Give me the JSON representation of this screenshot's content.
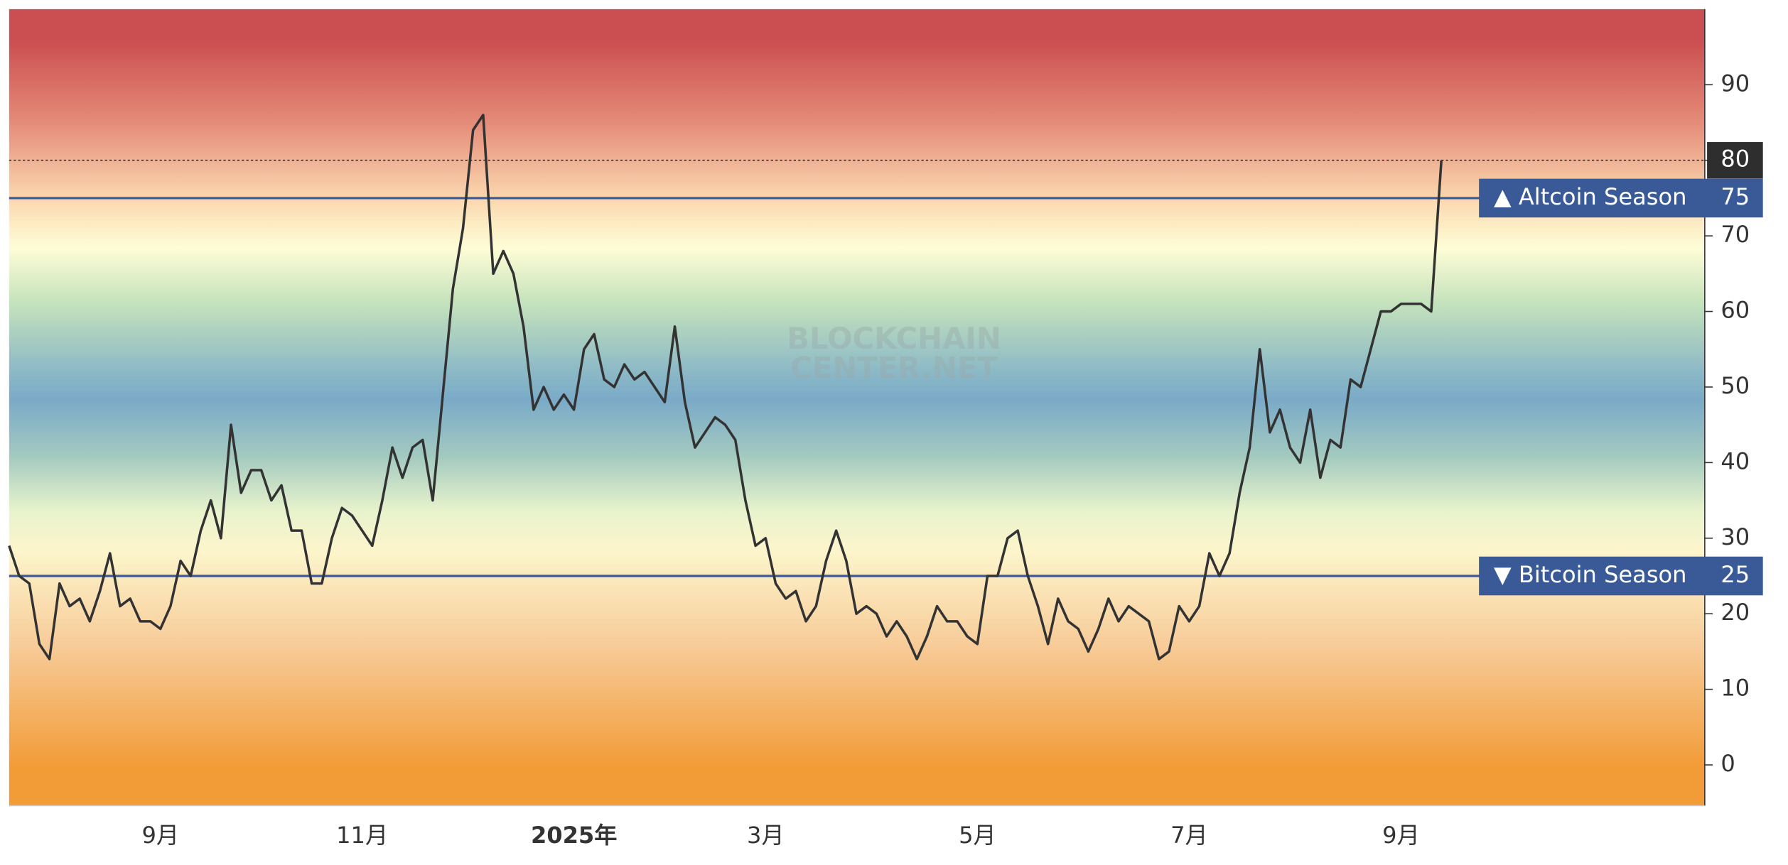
{
  "chart_data": {
    "type": "line",
    "categories": [
      null,
      null,
      null,
      null,
      null,
      null,
      null,
      null,
      null,
      null,
      null,
      null,
      null,
      null,
      null,
      "9月",
      null,
      null,
      null,
      null,
      null,
      null,
      null,
      null,
      null,
      null,
      null,
      null,
      null,
      null,
      null,
      null,
      null,
      null,
      null,
      "11月",
      null,
      null,
      null,
      null,
      null,
      null,
      null,
      null,
      null,
      null,
      null,
      null,
      null,
      null,
      null,
      null,
      null,
      null,
      null,
      null,
      "2025年",
      null,
      null,
      null,
      null,
      null,
      null,
      null,
      null,
      null,
      null,
      null,
      null,
      null,
      null,
      null,
      null,
      null,
      null,
      "3月",
      null,
      null,
      null,
      null,
      null,
      null,
      null,
      null,
      null,
      null,
      null,
      null,
      null,
      null,
      null,
      null,
      null,
      null,
      null,
      null,
      "5月",
      null,
      null,
      null,
      null,
      null,
      null,
      null,
      null,
      null,
      null,
      null,
      null,
      null,
      null,
      null,
      null,
      null,
      null,
      null,
      null,
      "7月",
      null,
      null,
      null,
      null,
      null,
      null,
      null,
      null,
      null,
      null,
      null,
      null,
      null,
      null,
      null,
      null,
      null,
      null,
      null,
      null,
      "9月",
      null,
      null,
      null,
      null
    ],
    "values": [
      29,
      25,
      24,
      16,
      14,
      24,
      21,
      22,
      19,
      23,
      28,
      21,
      22,
      19,
      19,
      18,
      21,
      27,
      25,
      31,
      35,
      30,
      45,
      36,
      39,
      39,
      35,
      37,
      31,
      31,
      24,
      24,
      30,
      34,
      33,
      31,
      29,
      35,
      42,
      38,
      42,
      43,
      35,
      49,
      63,
      71,
      84,
      86,
      65,
      68,
      65,
      58,
      47,
      50,
      47,
      49,
      47,
      55,
      57,
      51,
      50,
      53,
      51,
      52,
      50,
      48,
      58,
      48,
      42,
      44,
      46,
      45,
      43,
      35,
      29,
      30,
      24,
      22,
      23,
      19,
      21,
      27,
      31,
      27,
      20,
      21,
      20,
      17,
      19,
      17,
      14,
      17,
      21,
      19,
      19,
      17,
      16,
      25,
      25,
      30,
      31,
      25,
      21,
      16,
      22,
      19,
      18,
      15,
      18,
      22,
      19,
      21,
      20,
      19,
      14,
      15,
      21,
      19,
      21,
      28,
      25,
      28,
      36,
      42,
      55,
      44,
      47,
      42,
      40,
      47,
      38,
      43,
      42,
      51,
      50,
      55,
      60,
      60,
      61,
      61,
      61,
      60,
      80
    ],
    "color": "#333333",
    "ylim": [
      -5.4,
      100
    ],
    "yticks": [
      0,
      10,
      20,
      30,
      40,
      50,
      60,
      70,
      80,
      90
    ],
    "thresholds": [
      {
        "name": "▲ Altcoin Season",
        "value": 75
      },
      {
        "name": "▼ Bitcoin Season",
        "value": 25
      }
    ],
    "threshold_color": "#3a5a97",
    "watermark": [
      "BLOCKCHAIN",
      "CENTER.NET"
    ]
  }
}
